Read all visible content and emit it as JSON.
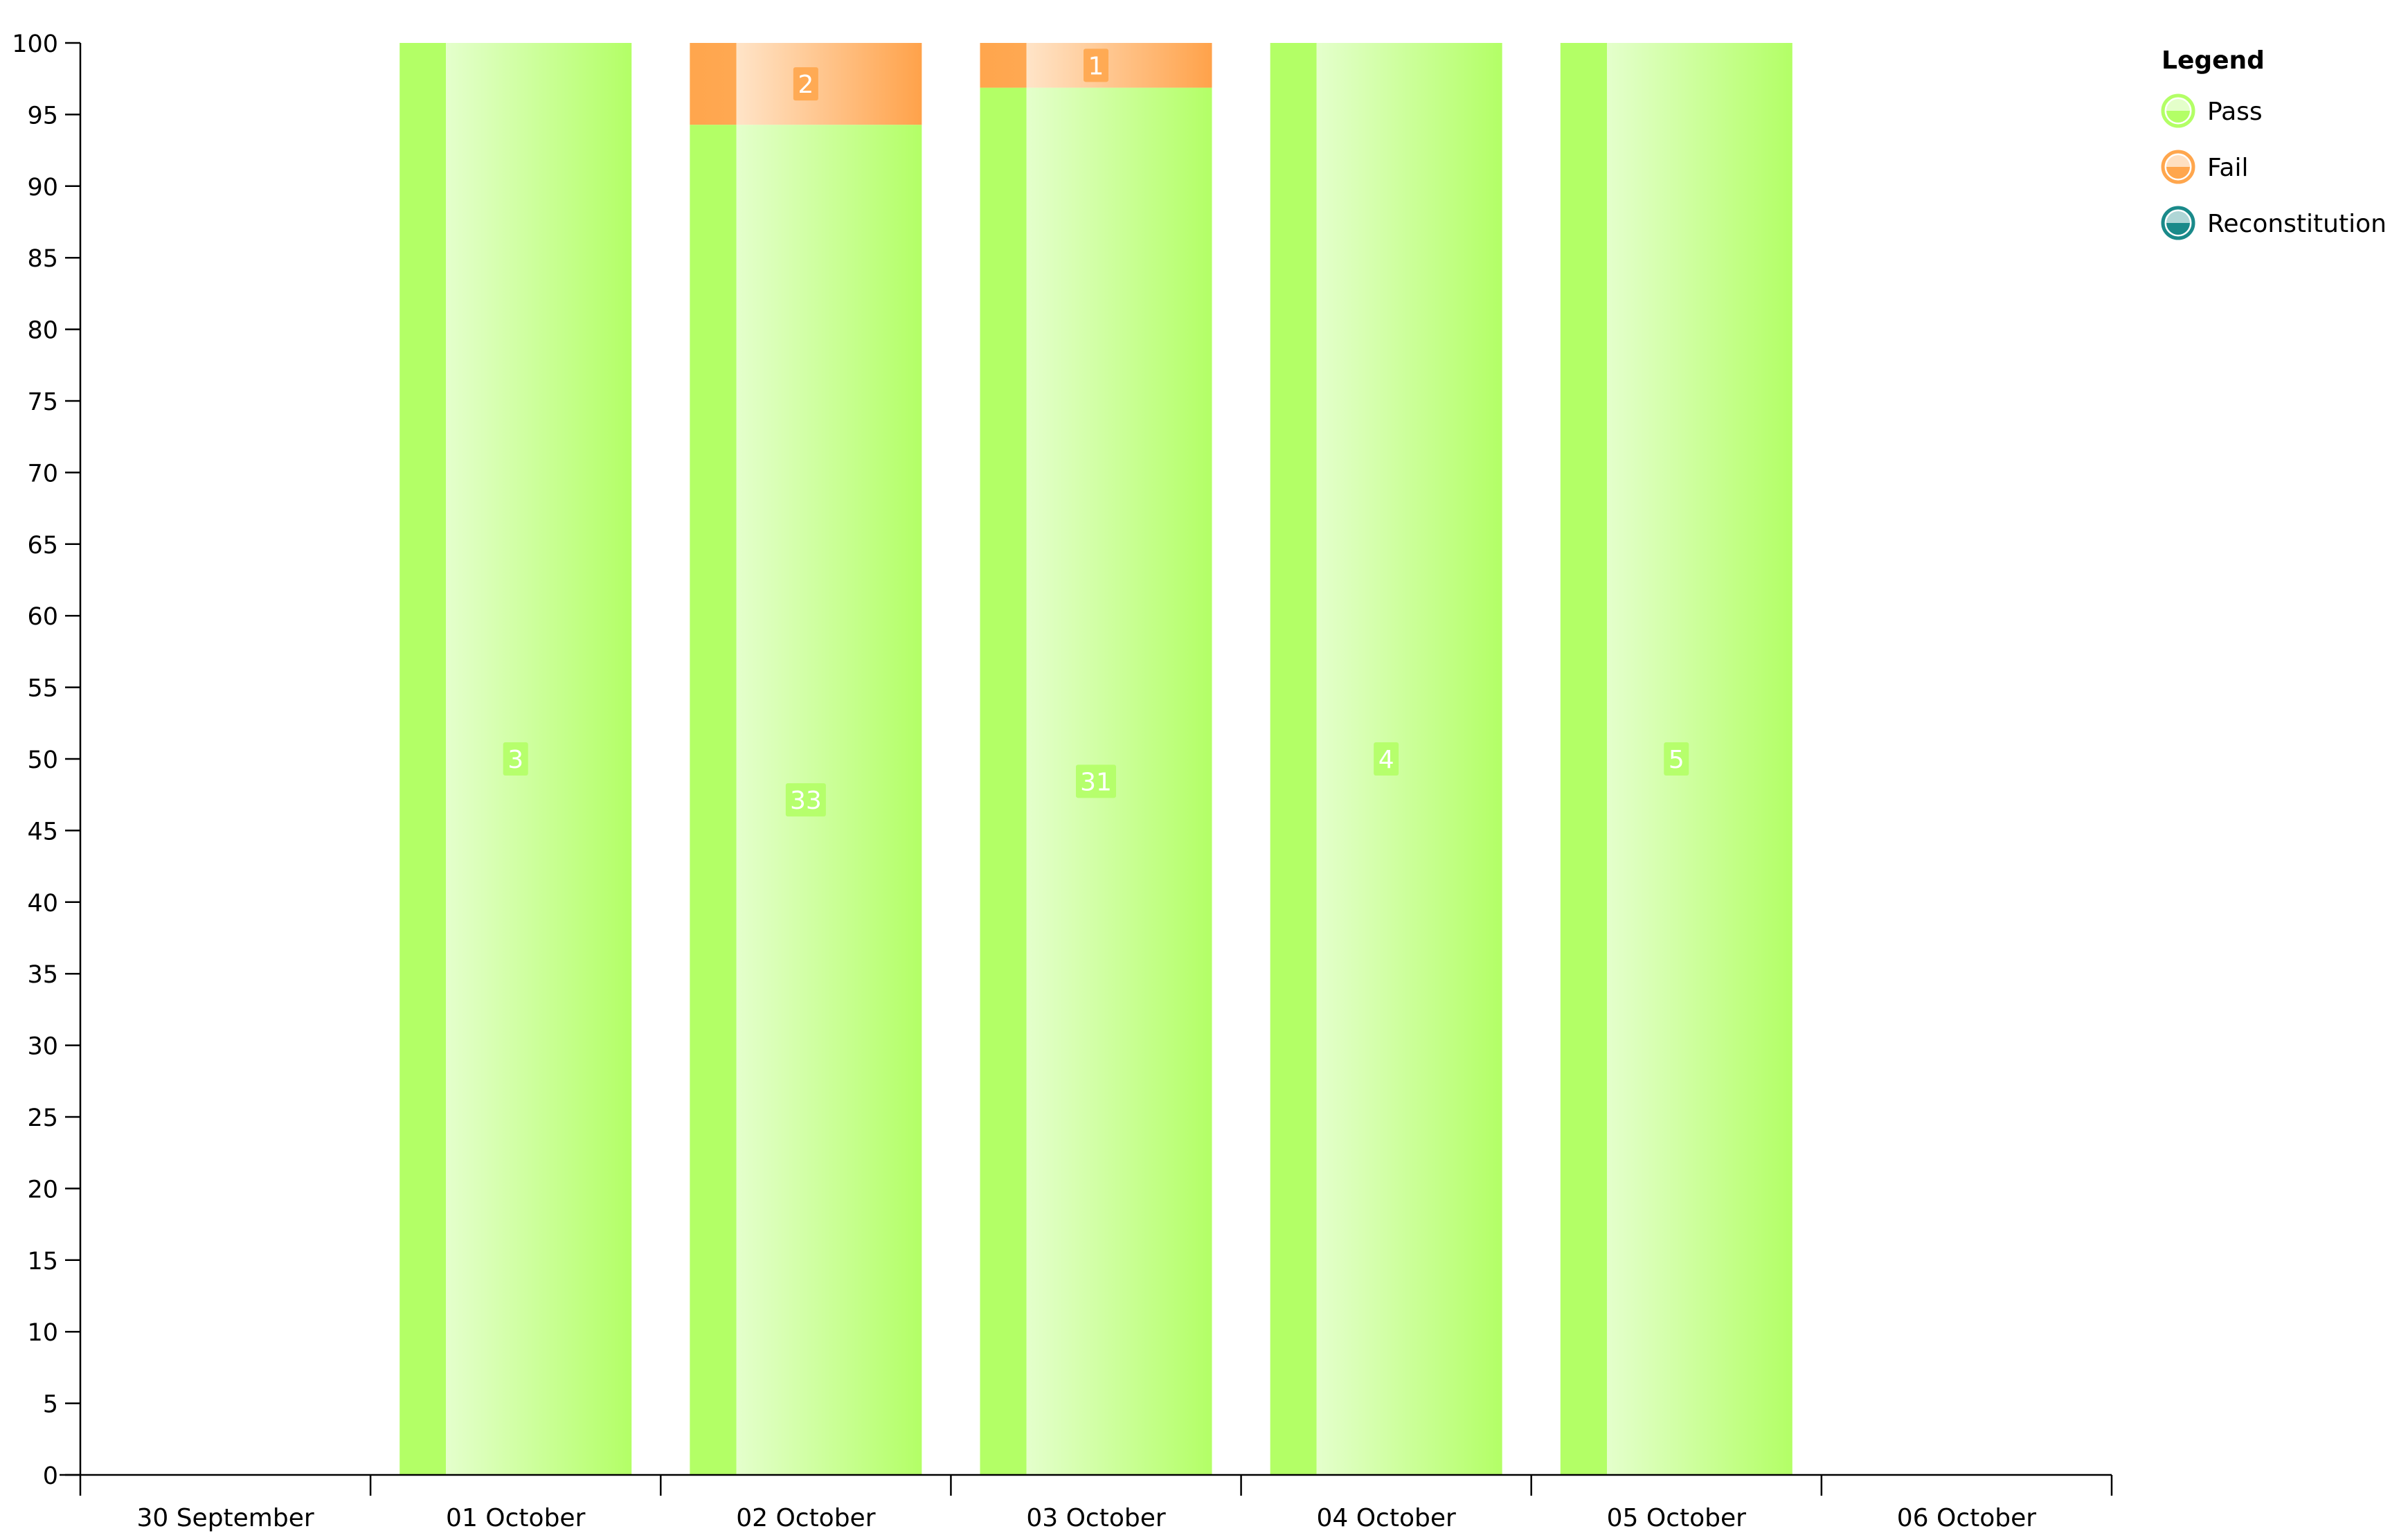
{
  "chart_data": {
    "type": "bar",
    "stacked": true,
    "normalized_percent": true,
    "title": "",
    "xlabel": "",
    "ylabel": "",
    "ylim": [
      0,
      100
    ],
    "yticks": [
      0,
      5,
      10,
      15,
      20,
      25,
      30,
      35,
      40,
      45,
      50,
      55,
      60,
      65,
      70,
      75,
      80,
      85,
      90,
      95,
      100
    ],
    "categories": [
      "30 September",
      "01 October",
      "02 October",
      "03 October",
      "04 October",
      "05 October",
      "06 October"
    ],
    "series": [
      {
        "name": "Pass",
        "color": "#b3ff66",
        "values": [
          0,
          3,
          33,
          31,
          4,
          5,
          0
        ]
      },
      {
        "name": "Fail",
        "color": "#ffa64d",
        "values": [
          0,
          0,
          2,
          1,
          0,
          0,
          0
        ]
      },
      {
        "name": "Reconstitution",
        "color": "#1a8a8a",
        "values": [
          0,
          0,
          0,
          0,
          0,
          0,
          0
        ]
      }
    ],
    "grid": false,
    "legend": {
      "title": "Legend",
      "placement": "top-right"
    }
  }
}
